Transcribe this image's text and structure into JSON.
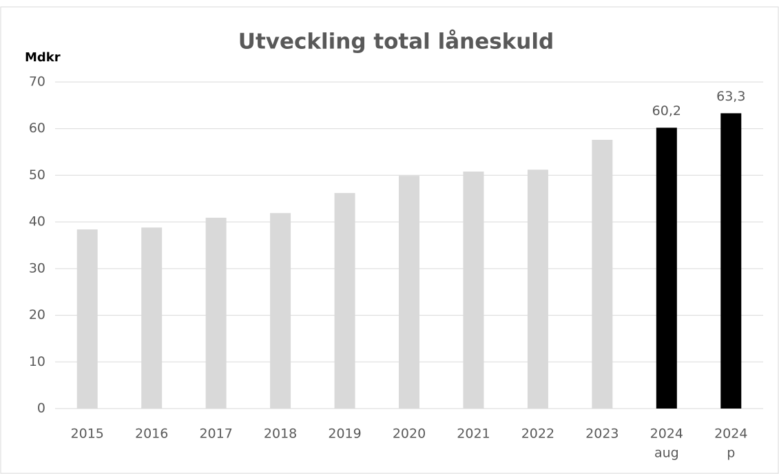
{
  "chart_data": {
    "type": "bar",
    "title": "Utveckling total låneskuld",
    "ylabel": "Mdkr",
    "categories": [
      [
        "2015"
      ],
      [
        "2016"
      ],
      [
        "2017"
      ],
      [
        "2018"
      ],
      [
        "2019"
      ],
      [
        "2020"
      ],
      [
        "2021"
      ],
      [
        "2022"
      ],
      [
        "2023"
      ],
      [
        "2024",
        "aug"
      ],
      [
        "2024",
        "p"
      ]
    ],
    "values": [
      38.4,
      38.8,
      40.9,
      41.9,
      46.2,
      49.9,
      50.8,
      51.2,
      57.6,
      60.2,
      63.3
    ],
    "value_labels": [
      null,
      null,
      null,
      null,
      null,
      null,
      null,
      null,
      null,
      "60,2",
      "63,3"
    ],
    "colors": [
      "#d9d9d9",
      "#d9d9d9",
      "#d9d9d9",
      "#d9d9d9",
      "#d9d9d9",
      "#d9d9d9",
      "#d9d9d9",
      "#d9d9d9",
      "#d9d9d9",
      "#000000",
      "#000000"
    ],
    "ylim": [
      0,
      70
    ],
    "yticks": [
      0,
      10,
      20,
      30,
      40,
      50,
      60,
      70
    ],
    "grid": true
  }
}
